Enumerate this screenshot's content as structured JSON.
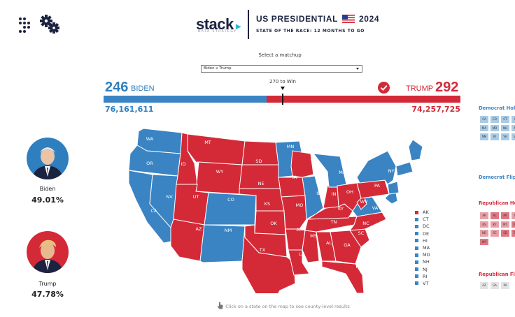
{
  "header": {
    "logo": "stack",
    "logo_sub": "DATA STRATEGY",
    "title_pre": "US PRESIDENTIAL",
    "title_year": "2024",
    "subtitle": "STATE OF THE RACE: 12 MONTHS TO GO"
  },
  "matchup": {
    "label": "Select a matchup",
    "selected": "Biden v Trump"
  },
  "tally": {
    "biden_ev": "246",
    "biden_label": "BIDEN",
    "trump_ev": "292",
    "trump_label": "TRUMP",
    "win_label": "270 to Win",
    "biden_votes": "76,161,611",
    "trump_votes": "74,257,725",
    "biden_bar_share": 0.4573
  },
  "candidates": [
    {
      "name": "Biden",
      "pct": "49.01%"
    },
    {
      "name": "Trump",
      "pct": "47.78%"
    }
  ],
  "states": [
    {
      "abbr": "WA",
      "party": "D"
    },
    {
      "abbr": "OR",
      "party": "D"
    },
    {
      "abbr": "CA",
      "party": "D"
    },
    {
      "abbr": "NV",
      "party": "D"
    },
    {
      "abbr": "ID",
      "party": "R"
    },
    {
      "abbr": "MT",
      "party": "R"
    },
    {
      "abbr": "WY",
      "party": "R"
    },
    {
      "abbr": "UT",
      "party": "R"
    },
    {
      "abbr": "AZ",
      "party": "R"
    },
    {
      "abbr": "CO",
      "party": "D"
    },
    {
      "abbr": "NM",
      "party": "D"
    },
    {
      "abbr": "ND",
      "party": "R"
    },
    {
      "abbr": "SD",
      "party": "R"
    },
    {
      "abbr": "NE",
      "party": "R"
    },
    {
      "abbr": "KS",
      "party": "R"
    },
    {
      "abbr": "OK",
      "party": "R"
    },
    {
      "abbr": "TX",
      "party": "R"
    },
    {
      "abbr": "MN",
      "party": "D"
    },
    {
      "abbr": "IA",
      "party": "R"
    },
    {
      "abbr": "MO",
      "party": "R"
    },
    {
      "abbr": "AR",
      "party": "R"
    },
    {
      "abbr": "LA",
      "party": "R"
    },
    {
      "abbr": "WI",
      "party": "R"
    },
    {
      "abbr": "IL",
      "party": "D"
    },
    {
      "abbr": "MS",
      "party": "R"
    },
    {
      "abbr": "AL",
      "party": "R"
    },
    {
      "abbr": "TN",
      "party": "R"
    },
    {
      "abbr": "KY",
      "party": "R"
    },
    {
      "abbr": "IN",
      "party": "R"
    },
    {
      "abbr": "MI",
      "party": "D"
    },
    {
      "abbr": "OH",
      "party": "R"
    },
    {
      "abbr": "GA",
      "party": "R"
    },
    {
      "abbr": "FL",
      "party": "R"
    },
    {
      "abbr": "SC",
      "party": "R"
    },
    {
      "abbr": "NC",
      "party": "R"
    },
    {
      "abbr": "VA",
      "party": "D"
    },
    {
      "abbr": "WV",
      "party": "R"
    },
    {
      "abbr": "PA",
      "party": "R"
    },
    {
      "abbr": "NY",
      "party": "D"
    },
    {
      "abbr": "ME",
      "party": "D"
    }
  ],
  "legend": [
    {
      "label": "AK",
      "party": "R"
    },
    {
      "label": "CT",
      "party": "D"
    },
    {
      "label": "DC",
      "party": "D"
    },
    {
      "label": "DE",
      "party": "D"
    },
    {
      "label": "HI",
      "party": "D"
    },
    {
      "label": "MA",
      "party": "D"
    },
    {
      "label": "MD",
      "party": "D"
    },
    {
      "label": "NH",
      "party": "D"
    },
    {
      "label": "NJ",
      "party": "D"
    },
    {
      "label": "RI",
      "party": "D"
    },
    {
      "label": "VT",
      "party": "D"
    }
  ],
  "side_panel": {
    "dem_hold_title": "Democrat Hold",
    "dem_hold": [
      "CA",
      "CO",
      "CT",
      "IL",
      "MA",
      "MD",
      "NH",
      "NJ",
      "NM",
      "RI",
      "VA",
      "VT"
    ],
    "dem_flip_title": "Democrat Flip",
    "rep_hold_title": "Republican Hold",
    "rep_hold": [
      "AK",
      "AL",
      "AR",
      "IN",
      "KS",
      "KY",
      "MT",
      "NC",
      "ND",
      "SC",
      "SD",
      "TN",
      "WY"
    ],
    "rep_flip_title": "Republican Flip",
    "rep_flip": [
      "AZ",
      "GA",
      "PA"
    ]
  },
  "hint": "Click on a state on the map to see county-level results",
  "colors": {
    "dem": "#3a84c4",
    "rep": "#d42a38",
    "dem_light": "#a9cbe6",
    "rep_light": "#e8a0a7"
  }
}
